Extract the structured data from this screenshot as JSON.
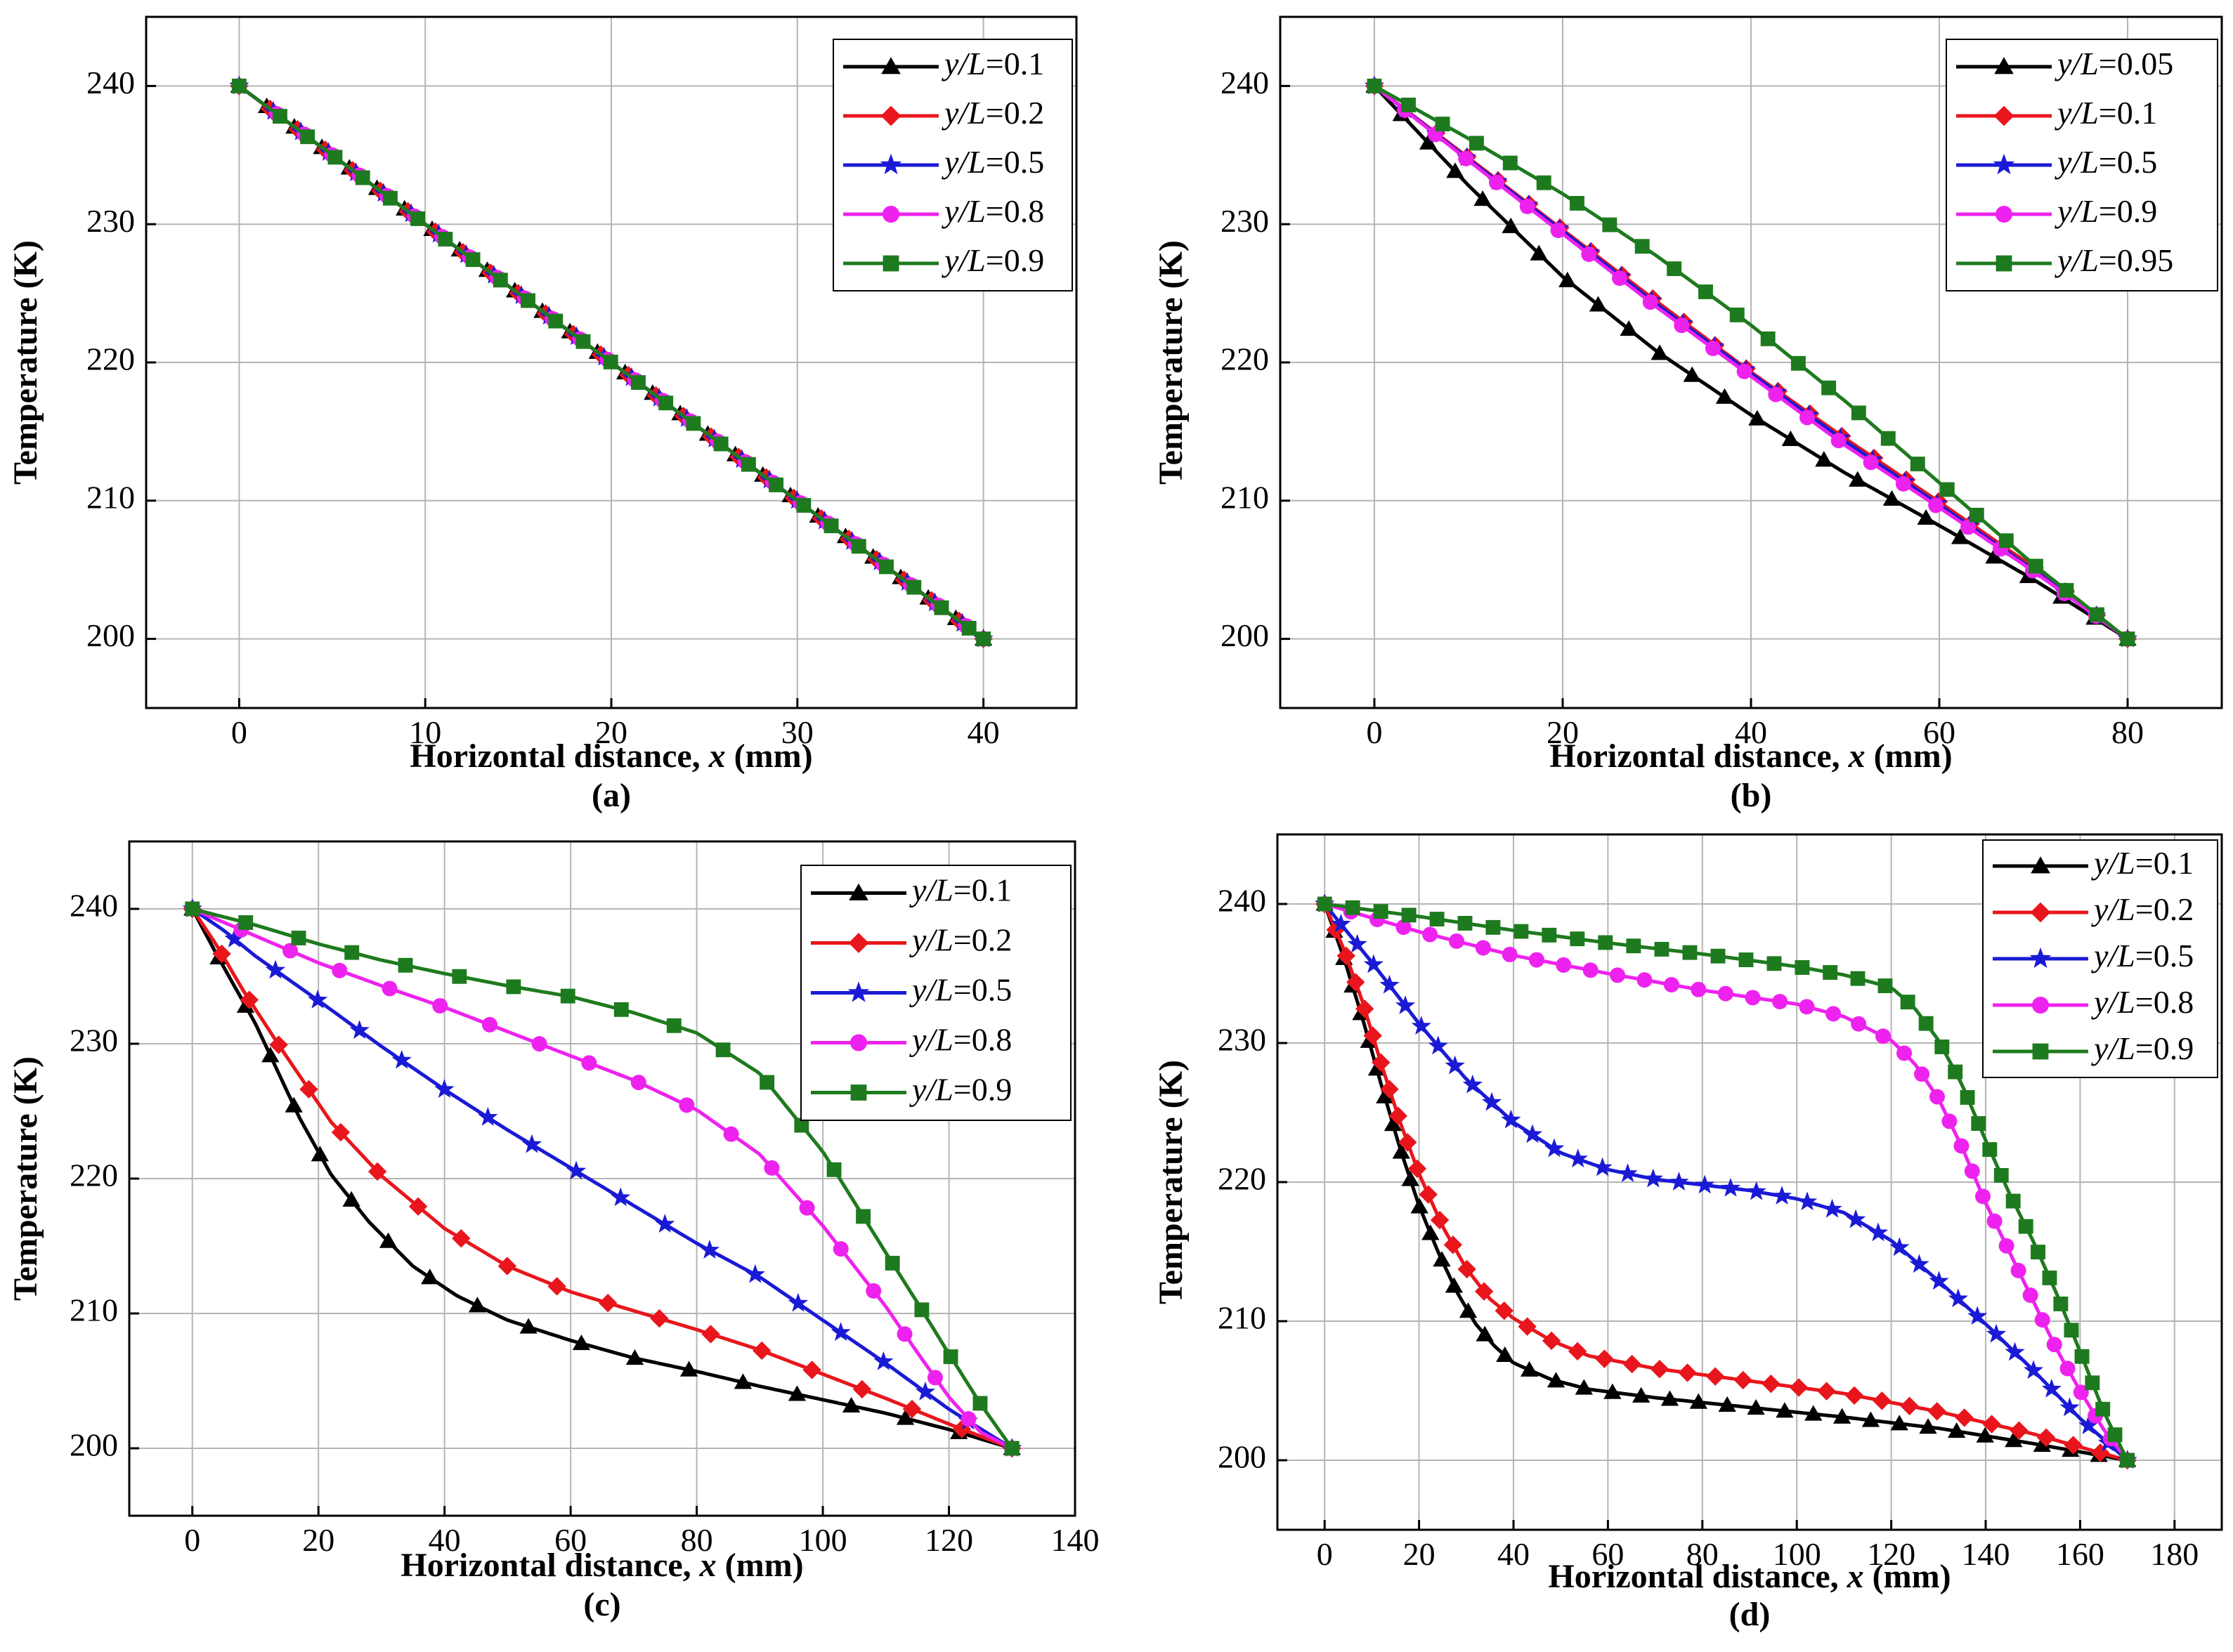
{
  "colors": {
    "black": "#000000",
    "red": "#e8161c",
    "blue": "#1a1ad6",
    "magenta": "#ee22ee",
    "green": "#1e7a1e"
  },
  "chart_data": [
    {
      "id": "a",
      "type": "line",
      "caption": "(a)",
      "xlabel_prefix": "Horizontal distance, ",
      "xlabel_var": "x",
      "xlabel_suffix": " (mm)",
      "ylabel": "Temperature (K)",
      "xlim": [
        -5,
        45
      ],
      "ylim": [
        195,
        245
      ],
      "xticks": [
        0,
        10,
        20,
        30,
        40
      ],
      "yticks": [
        200,
        210,
        220,
        230,
        240
      ],
      "legend_position": "top-right",
      "series": [
        {
          "name_var": "y/L",
          "name_value": "=0.1",
          "color": "#000000",
          "marker": "triangle",
          "n": 28,
          "x": [
            0,
            10,
            20,
            30,
            40
          ],
          "y": [
            240,
            230,
            220,
            210,
            200
          ]
        },
        {
          "name_var": "y/L",
          "name_value": "=0.2",
          "color": "#e8161c",
          "marker": "diamond",
          "n": 28,
          "x": [
            0,
            10,
            20,
            30,
            40
          ],
          "y": [
            240,
            230,
            220,
            210,
            200
          ]
        },
        {
          "name_var": "y/L",
          "name_value": "=0.5",
          "color": "#1a1ad6",
          "marker": "star",
          "n": 28,
          "x": [
            0,
            10,
            20,
            30,
            40
          ],
          "y": [
            240,
            230,
            220,
            210,
            200
          ]
        },
        {
          "name_var": "y/L",
          "name_value": "=0.8",
          "color": "#ee22ee",
          "marker": "circle",
          "n": 28,
          "x": [
            0,
            10,
            20,
            30,
            40
          ],
          "y": [
            240,
            230,
            220,
            210,
            200
          ]
        },
        {
          "name_var": "y/L",
          "name_value": "=0.9",
          "color": "#1e7a1e",
          "marker": "square",
          "n": 28,
          "x": [
            0,
            10,
            20,
            30,
            40
          ],
          "y": [
            240,
            230,
            220,
            210,
            200
          ]
        }
      ]
    },
    {
      "id": "b",
      "type": "line",
      "caption": "(b)",
      "xlabel_prefix": "Horizontal distance, ",
      "xlabel_var": "x",
      "xlabel_suffix": " (mm)",
      "ylabel": "Temperature (K)",
      "xlim": [
        -10,
        90
      ],
      "ylim": [
        195,
        245
      ],
      "xticks": [
        0,
        20,
        40,
        60,
        80
      ],
      "yticks": [
        200,
        210,
        220,
        230,
        240
      ],
      "legend_position": "top-right",
      "series": [
        {
          "name_var": "y/L",
          "name_value": "=0.05",
          "color": "#000000",
          "marker": "triangle",
          "n": 25,
          "x": [
            0,
            10,
            20,
            30,
            40,
            50,
            60,
            70,
            80
          ],
          "y": [
            240,
            232.8,
            226.2,
            220.8,
            216.2,
            212,
            208.2,
            204.3,
            200
          ]
        },
        {
          "name_var": "y/L",
          "name_value": "=0.1",
          "color": "#e8161c",
          "marker": "diamond",
          "n": 25,
          "x": [
            0,
            10,
            20,
            30,
            40,
            50,
            60,
            70,
            80
          ],
          "y": [
            240,
            234.8,
            229.6,
            224.4,
            219.3,
            214.5,
            209.9,
            205.2,
            200
          ]
        },
        {
          "name_var": "y/L",
          "name_value": "=0.5",
          "color": "#1a1ad6",
          "marker": "star",
          "n": 25,
          "x": [
            0,
            10,
            20,
            30,
            40,
            50,
            60,
            70,
            80
          ],
          "y": [
            240,
            234.7,
            229.5,
            224.2,
            219.2,
            214.3,
            209.7,
            205,
            200
          ]
        },
        {
          "name_var": "y/L",
          "name_value": "=0.9",
          "color": "#ee22ee",
          "marker": "circle",
          "n": 25,
          "x": [
            0,
            10,
            20,
            30,
            40,
            50,
            60,
            70,
            80
          ],
          "y": [
            240,
            234.6,
            229.3,
            224,
            219,
            214,
            209.5,
            204.9,
            200
          ]
        },
        {
          "name_var": "y/L",
          "name_value": "=0.95",
          "color": "#1e7a1e",
          "marker": "square",
          "n": 25,
          "x": [
            0,
            10,
            20,
            30,
            40,
            50,
            60,
            70,
            80
          ],
          "y": [
            240,
            236.2,
            232.2,
            227.7,
            222.7,
            217.2,
            211.3,
            205.4,
            200
          ]
        }
      ]
    },
    {
      "id": "c",
      "type": "line",
      "caption": "(c)",
      "xlabel_prefix": "Horizontal distance, ",
      "xlabel_var": "x",
      "xlabel_suffix": " (mm)",
      "ylabel": "Temperature (K)",
      "xlim": [
        -10,
        140
      ],
      "ylim": [
        195,
        245
      ],
      "xticks": [
        0,
        20,
        40,
        60,
        80,
        100,
        120,
        140
      ],
      "yticks": [
        200,
        210,
        220,
        230,
        240
      ],
      "legend_position": "top-right",
      "series": [
        {
          "name_var": "y/L",
          "name_value": "=0.1",
          "color": "#000000",
          "marker": "triangle",
          "n": 20,
          "x": [
            0,
            4,
            10,
            17,
            22,
            28,
            35,
            42,
            50,
            60,
            70,
            80,
            90,
            100,
            110,
            120,
            130
          ],
          "y": [
            240,
            236.5,
            231.5,
            224.5,
            220.3,
            216.8,
            213.5,
            211.3,
            209.5,
            208,
            206.7,
            205.7,
            204.6,
            203.6,
            202.6,
            201.4,
            200
          ]
        },
        {
          "name_var": "y/L",
          "name_value": "=0.2",
          "color": "#e8161c",
          "marker": "diamond",
          "n": 20,
          "x": [
            0,
            4,
            8,
            14,
            22,
            30,
            40,
            50,
            60,
            70,
            80,
            90,
            100,
            110,
            120,
            130
          ],
          "y": [
            240,
            237.2,
            234,
            229.7,
            224.2,
            220.2,
            216.3,
            213.5,
            211.6,
            210.2,
            208.8,
            207.3,
            205.5,
            203.7,
            201.8,
            200
          ]
        },
        {
          "name_var": "y/L",
          "name_value": "=0.5",
          "color": "#1a1ad6",
          "marker": "star",
          "n": 20,
          "x": [
            0,
            5,
            10,
            20,
            30,
            40,
            50,
            60,
            70,
            80,
            90,
            100,
            110,
            120,
            130
          ],
          "y": [
            240,
            238.4,
            236.5,
            233.2,
            229.8,
            226.6,
            223.6,
            220.8,
            218,
            215.2,
            212.7,
            209.5,
            206.3,
            202.9,
            200
          ]
        },
        {
          "name_var": "y/L",
          "name_value": "=0.8",
          "color": "#ee22ee",
          "marker": "circle",
          "n": 20,
          "x": [
            0,
            10,
            20,
            30,
            40,
            50,
            60,
            70,
            80,
            90,
            100,
            110,
            115,
            120,
            125,
            130
          ],
          "y": [
            240,
            238,
            236,
            234.3,
            232.7,
            230.9,
            229.1,
            227.3,
            225.1,
            221.8,
            216.5,
            210.5,
            207.1,
            203.8,
            201.2,
            200
          ]
        },
        {
          "name_var": "y/L",
          "name_value": "=0.9",
          "color": "#1e7a1e",
          "marker": "square",
          "n": 20,
          "x": [
            0,
            10,
            20,
            30,
            40,
            50,
            60,
            70,
            80,
            90,
            100,
            110,
            115,
            120,
            125,
            130
          ],
          "y": [
            240,
            238.8,
            237.4,
            236.2,
            235.2,
            234.3,
            233.5,
            232.3,
            230.8,
            227.8,
            222,
            214.5,
            210.8,
            207,
            203.3,
            200
          ]
        }
      ]
    },
    {
      "id": "d",
      "type": "line",
      "caption": "(d)",
      "xlabel_prefix": "Horizontal distance, ",
      "xlabel_var": "x",
      "xlabel_suffix": " (mm)",
      "ylabel": "Temperature (K)",
      "xlim": [
        -10,
        190
      ],
      "ylim": [
        195,
        245
      ],
      "xticks": [
        0,
        20,
        40,
        60,
        80,
        100,
        120,
        140,
        160,
        180
      ],
      "yticks": [
        200,
        210,
        220,
        230,
        240
      ],
      "legend_position": "top-right",
      "series": [
        {
          "name_var": "y/L",
          "name_value": "=0.1",
          "color": "#000000",
          "marker": "triangle",
          "n": 40,
          "x": [
            0,
            4,
            8,
            12,
            16,
            20,
            24,
            28,
            32,
            36,
            40,
            48,
            56,
            70,
            90,
            110,
            130,
            150,
            170
          ],
          "y": [
            240,
            236.2,
            231.8,
            227,
            222.4,
            218.3,
            215,
            212.1,
            209.8,
            208.2,
            207,
            205.8,
            205.1,
            204.5,
            203.8,
            203.1,
            202.3,
            201.2,
            200
          ]
        },
        {
          "name_var": "y/L",
          "name_value": "=0.2",
          "color": "#e8161c",
          "marker": "diamond",
          "n": 40,
          "x": [
            0,
            4,
            8,
            12,
            16,
            20,
            25,
            30,
            35,
            40,
            48,
            56,
            70,
            90,
            110,
            130,
            150,
            170
          ],
          "y": [
            240,
            236.8,
            233,
            228.5,
            224.3,
            220.6,
            216.8,
            213.8,
            211.6,
            210.2,
            208.6,
            207.5,
            206.6,
            205.7,
            204.8,
            203.5,
            201.9,
            200
          ]
        },
        {
          "name_var": "y/L",
          "name_value": "=0.5",
          "color": "#1a1ad6",
          "marker": "star",
          "n": 40,
          "x": [
            0,
            10,
            20,
            30,
            40,
            50,
            60,
            70,
            80,
            90,
            100,
            110,
            120,
            130,
            140,
            150,
            160,
            170
          ],
          "y": [
            240,
            235.8,
            231.4,
            227.4,
            224.3,
            222.1,
            220.9,
            220.2,
            219.8,
            219.4,
            218.8,
            217.8,
            215.8,
            212.9,
            209.8,
            206.5,
            203,
            200
          ]
        },
        {
          "name_var": "y/L",
          "name_value": "=0.8",
          "color": "#ee22ee",
          "marker": "circle",
          "n": 40,
          "x": [
            0,
            20,
            40,
            60,
            80,
            100,
            110,
            120,
            125,
            130,
            135,
            140,
            145,
            150,
            155,
            160,
            165,
            170
          ],
          "y": [
            240,
            238,
            236.3,
            235,
            233.8,
            232.8,
            231.9,
            230.2,
            228.5,
            226,
            222.5,
            218.5,
            215,
            211.5,
            208,
            205,
            202.2,
            200
          ]
        },
        {
          "name_var": "y/L",
          "name_value": "=0.9",
          "color": "#1e7a1e",
          "marker": "square",
          "n": 40,
          "x": [
            0,
            20,
            40,
            60,
            80,
            100,
            110,
            120,
            125,
            130,
            135,
            140,
            145,
            150,
            155,
            160,
            165,
            170
          ],
          "y": [
            240,
            239.1,
            238.1,
            237.2,
            236.4,
            235.5,
            234.9,
            234,
            232.5,
            230.2,
            227,
            223,
            219.2,
            215.8,
            212,
            207.8,
            203.5,
            200
          ]
        }
      ]
    }
  ]
}
